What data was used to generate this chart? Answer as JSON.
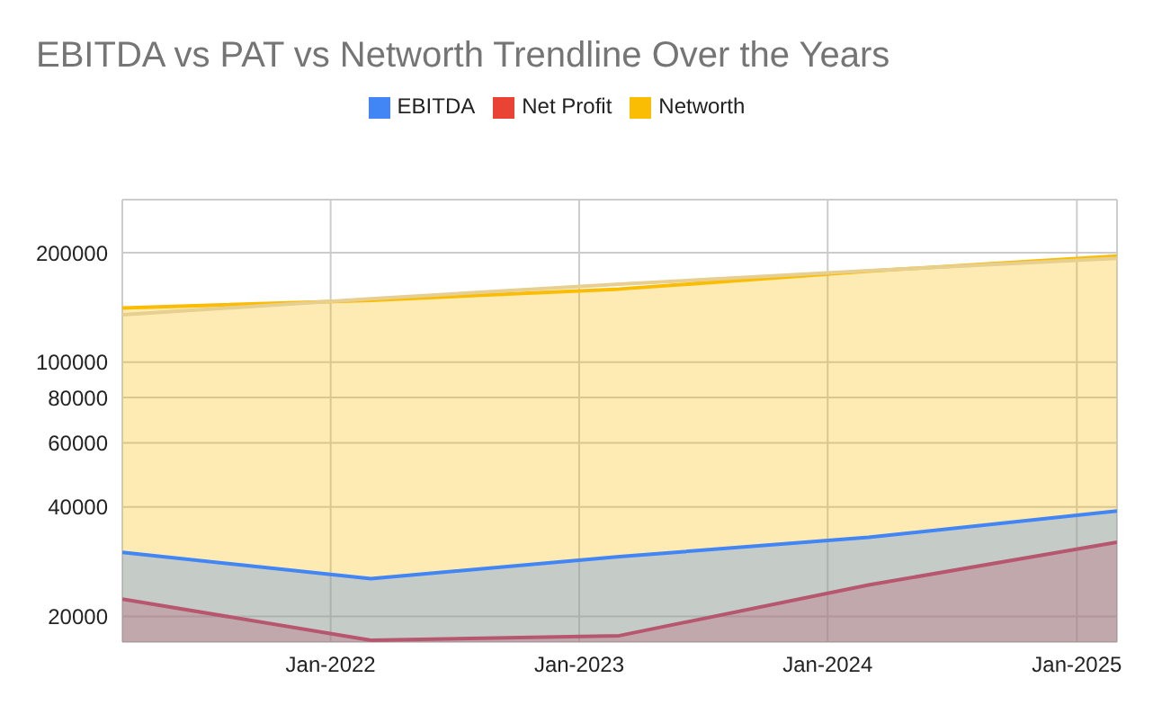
{
  "chart_data": {
    "type": "area",
    "title": "EBITDA vs PAT vs Networth Trendline Over the Years",
    "x": [
      "2021-03",
      "2022-03",
      "2023-03",
      "2024-03",
      "2025-03"
    ],
    "series": [
      {
        "name": "EBITDA",
        "color": "#4285f4",
        "values": [
          30000,
          25400,
          29200,
          33000,
          39000
        ]
      },
      {
        "name": "Net Profit",
        "color": "#ea4335",
        "values": [
          22300,
          17200,
          17700,
          24400,
          32000
        ]
      },
      {
        "name": "Networth",
        "color": "#fbbc04",
        "values": [
          141000,
          148000,
          159000,
          178000,
          196000
        ]
      },
      {
        "type": "line",
        "color": "#e6cf8f",
        "x": [
          "2021-03",
          "2022-03",
          "2023-03",
          "2024-03",
          "2025-03"
        ],
        "values": [
          135000,
          149500,
          164000,
          178500,
          193000
        ]
      }
    ],
    "xlim": [
      "2021-03",
      "2025-03"
    ],
    "xticks": [
      {
        "value": "2022-01",
        "label": "Jan-2022"
      },
      {
        "value": "2023-01",
        "label": "Jan-2023"
      },
      {
        "value": "2024-01",
        "label": "Jan-2024"
      },
      {
        "value": "2025-01",
        "label": "Jan-2025"
      }
    ],
    "ylim": [
      17000,
      280000
    ],
    "yticks": [
      20000,
      40000,
      60000,
      80000,
      100000,
      200000
    ],
    "log": true,
    "grid": true,
    "legend": "top"
  }
}
